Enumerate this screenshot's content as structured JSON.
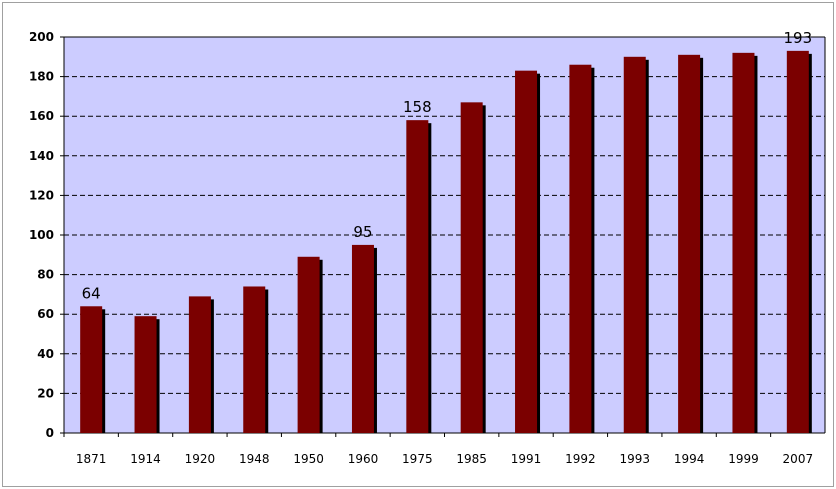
{
  "chart_data": {
    "type": "bar",
    "title": "",
    "xlabel": "",
    "ylabel": "",
    "categories": [
      "1871",
      "1914",
      "1920",
      "1948",
      "1950",
      "1960",
      "1975",
      "1985",
      "1991",
      "1992",
      "1993",
      "1994",
      "1999",
      "2007"
    ],
    "values": [
      64,
      59,
      69,
      74,
      89,
      95,
      158,
      167,
      183,
      186,
      190,
      191,
      192,
      193
    ],
    "data_labels": [
      {
        "category": "1871",
        "text": "64"
      },
      {
        "category": "1960",
        "text": "95"
      },
      {
        "category": "1975",
        "text": "158"
      },
      {
        "category": "2007",
        "text": "193"
      }
    ],
    "ylim": [
      0,
      200
    ],
    "yticks": [
      0,
      20,
      40,
      60,
      80,
      100,
      120,
      140,
      160,
      180,
      200
    ],
    "grid": "horizontal dashed",
    "legend": "none",
    "colors": {
      "plot_background": "#ccccff",
      "bar": "#7b0000",
      "bar_shadow": "#000000",
      "grid": "#000000"
    }
  }
}
